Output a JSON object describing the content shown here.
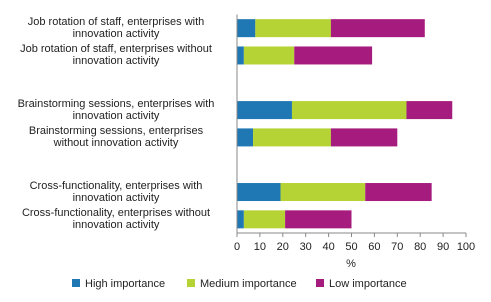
{
  "chart_data": {
    "type": "hbar_stacked",
    "categories": [
      "Job rotation of staff, enterprises with\ninnovation activity",
      "Job rotation of staff, enterprises without\ninnovation activity",
      null,
      "Brainstorming sessions, enterprises with\ninnovation activity",
      "Brainstorming sessions, enterprises\nwithout innovation activity",
      null,
      "Cross-functionality, enterprises with\ninnovation activity",
      "Cross-functionality, enterprises without\ninnovation activity"
    ],
    "series": [
      {
        "name": "High importance",
        "color": "#1f78b4",
        "values": [
          8,
          3,
          null,
          24,
          7,
          null,
          19,
          3
        ]
      },
      {
        "name": "Medium importance",
        "color": "#b5d334",
        "values": [
          33,
          22,
          null,
          50,
          34,
          null,
          37,
          18
        ]
      },
      {
        "name": "Low importance",
        "color": "#a61b7e",
        "values": [
          41,
          34,
          null,
          20,
          29,
          null,
          29,
          29
        ]
      }
    ],
    "xlabel": "%",
    "xlim": [
      0,
      100
    ],
    "xticks": [
      0,
      10,
      20,
      30,
      40,
      50,
      60,
      70,
      80,
      90,
      100
    ],
    "legend": "bottom"
  }
}
